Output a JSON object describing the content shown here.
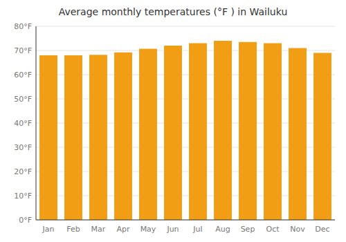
{
  "chart_data": {
    "type": "bar",
    "title": "Average monthly temperatures (°F ) in Wailuku",
    "categories": [
      "Jan",
      "Feb",
      "Mar",
      "Apr",
      "May",
      "Jun",
      "Jul",
      "Aug",
      "Sep",
      "Oct",
      "Nov",
      "Dec"
    ],
    "values": [
      68.0,
      68.0,
      68.2,
      69.2,
      70.7,
      72.0,
      73.0,
      74.0,
      73.5,
      73.0,
      71.0,
      69.0
    ],
    "color": "#f29e14",
    "ylim": [
      0,
      80
    ],
    "yticks": [
      {
        "value": 0,
        "label": "0°F"
      },
      {
        "value": 10,
        "label": "10°F"
      },
      {
        "value": 20,
        "label": "20°F"
      },
      {
        "value": 30,
        "label": "30°F"
      },
      {
        "value": 40,
        "label": "40°F"
      },
      {
        "value": 50,
        "label": "50°F"
      },
      {
        "value": 60,
        "label": "60°F"
      },
      {
        "value": 70,
        "label": "70°F"
      },
      {
        "value": 80,
        "label": "80°F"
      }
    ],
    "grid": true
  }
}
